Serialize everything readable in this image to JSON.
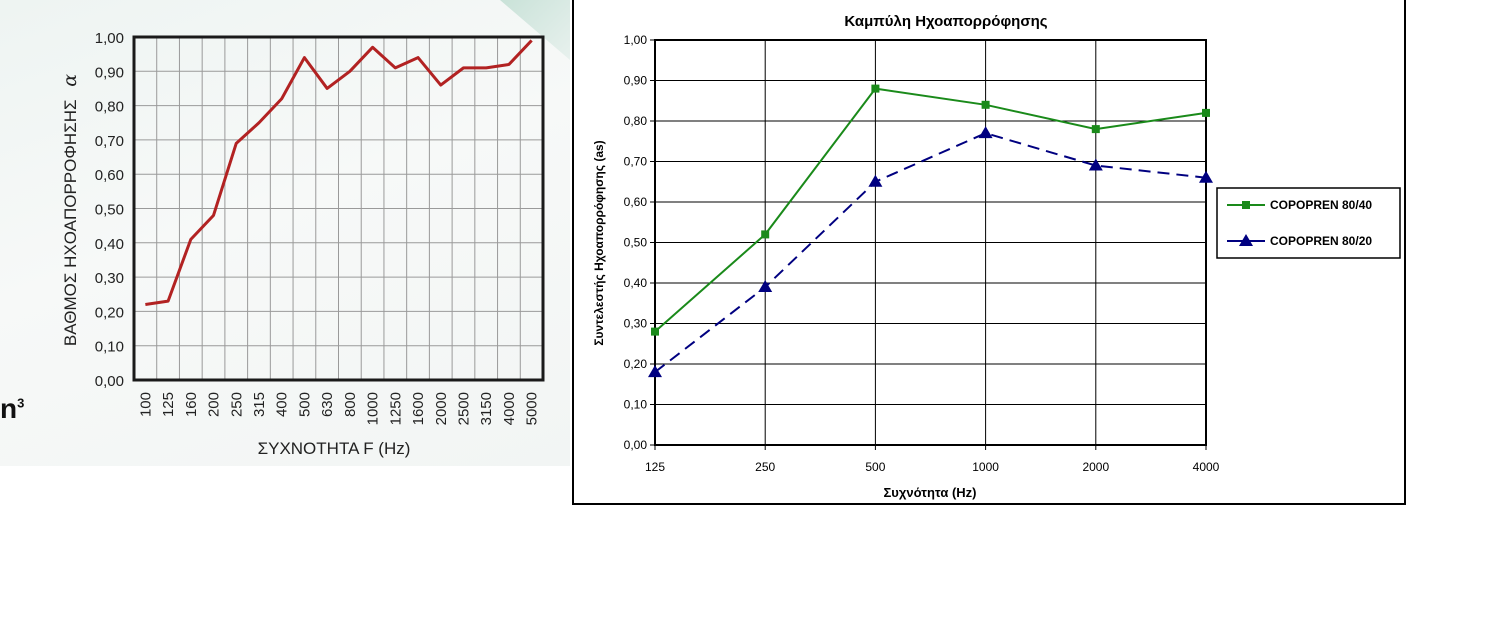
{
  "chart_data": [
    {
      "type": "line",
      "title": "",
      "xlabel": "ΣΥΧΝΟΤΗΤΑ F (Hz)",
      "ylabel": "ΒΑΘΜΟΣ ΗΧΟΑΠΟΡΡΟΦΗΣΗΣ",
      "ylabel_symbol": "α",
      "categories": [
        "100",
        "125",
        "160",
        "200",
        "250",
        "315",
        "400",
        "500",
        "630",
        "800",
        "1000",
        "1250",
        "1600",
        "2000",
        "2500",
        "3150",
        "4000",
        "5000"
      ],
      "yticks": [
        "0,00",
        "0,10",
        "0,20",
        "0,30",
        "0,40",
        "0,50",
        "0,60",
        "0,70",
        "0,80",
        "0,90",
        "1,00"
      ],
      "ylim": [
        0,
        1
      ],
      "grid": true,
      "series": [
        {
          "values": [
            0.22,
            0.23,
            0.41,
            0.48,
            0.69,
            0.75,
            0.82,
            0.94,
            0.85,
            0.9,
            0.97,
            0.91,
            0.94,
            0.86,
            0.91,
            0.91,
            0.92,
            0.99
          ],
          "color": "#b22222"
        }
      ]
    },
    {
      "type": "line",
      "title": "Καμπύλη Ηχοαπορρόφησης",
      "xlabel": "Συχνότητα (Hz)",
      "ylabel": "Συντελεστής Ηχοαπορρόφησης (as)",
      "categories": [
        "125",
        "250",
        "500",
        "1000",
        "2000",
        "4000"
      ],
      "yticks": [
        "0,00",
        "0,10",
        "0,20",
        "0,30",
        "0,40",
        "0,50",
        "0,60",
        "0,70",
        "0,80",
        "0,90",
        "1,00"
      ],
      "ylim": [
        0,
        1
      ],
      "grid": true,
      "legend_position": "right",
      "series": [
        {
          "name": "COPOPREN 80/40",
          "values": [
            0.28,
            0.52,
            0.88,
            0.84,
            0.78,
            0.82
          ],
          "color": "#1a8a1a",
          "marker": "square",
          "dash": "solid"
        },
        {
          "name": "COPOPREN 80/20",
          "values": [
            0.18,
            0.39,
            0.65,
            0.77,
            0.69,
            0.66
          ],
          "color": "#000080",
          "marker": "triangle",
          "dash": "dashed"
        }
      ]
    }
  ],
  "misc": {
    "cut_text": "n",
    "cut_sup": "3"
  }
}
